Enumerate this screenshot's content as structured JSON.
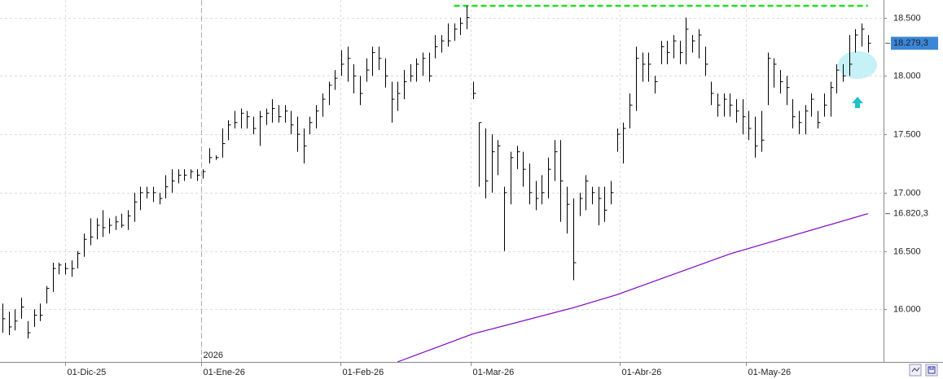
{
  "chart_data": {
    "type": "ohlc",
    "annotation": "2026",
    "color": "#000000",
    "grid": true,
    "xlim": [
      -0.4,
      140.5
    ],
    "ylim": [
      15550,
      18650
    ],
    "xticks": [
      {
        "value": 10,
        "label": "01-Dic-25"
      },
      {
        "value": 31.7,
        "label": "01-Ene-26"
      },
      {
        "value": 53.9,
        "label": "01-Feb-26"
      },
      {
        "value": 74.7,
        "label": "01-Mar-26"
      },
      {
        "value": 98.4,
        "label": "01-Abr-26"
      },
      {
        "value": 118.6,
        "label": "01-May-26"
      }
    ],
    "yticks": [
      {
        "value": 16000,
        "label": "16.000"
      },
      {
        "value": 16500,
        "label": "16.500"
      },
      {
        "value": 17000,
        "label": "17.000"
      },
      {
        "value": 17500,
        "label": "17.500"
      },
      {
        "value": 18000,
        "label": "18.000"
      },
      {
        "value": 18500,
        "label": "18.500"
      }
    ],
    "high": [
      16050,
      15980,
      16000,
      16100,
      15900,
      16000,
      16050,
      16200,
      16400,
      16400,
      16400,
      16420,
      16500,
      16650,
      16780,
      16780,
      16850,
      16780,
      16800,
      16820,
      16850,
      17000,
      17050,
      17050,
      17050,
      17000,
      17150,
      17200,
      17200,
      17200,
      17200,
      17200,
      17200,
      17380,
      17320,
      17550,
      17620,
      17700,
      17720,
      17700,
      17650,
      17700,
      17720,
      17800,
      17750,
      17750,
      17700,
      17650,
      17550,
      17650,
      17750,
      17850,
      17950,
      18050,
      18220,
      18250,
      18100,
      18000,
      18150,
      18250,
      18250,
      18150,
      17950,
      17950,
      18050,
      18100,
      18150,
      18200,
      18200,
      18350,
      18350,
      18450,
      18450,
      18500,
      18600,
      17950,
      17600,
      17550,
      17500,
      17450,
      17050,
      17350,
      17400,
      17350,
      17250,
      17100,
      17150,
      17300,
      17450,
      17450,
      17050,
      16950,
      17000,
      17150,
      17050,
      17050,
      17050,
      17100,
      17550,
      17600,
      17850,
      18250,
      18200,
      18200,
      18000,
      18300,
      18300,
      18350,
      18300,
      18500,
      18350,
      18400,
      18250,
      17950,
      17850,
      17850,
      17850,
      17800,
      17800,
      17700,
      17650,
      17700,
      18200,
      18150,
      18050,
      18000,
      17800,
      17700,
      17750,
      17850,
      17700,
      17850,
      17950,
      18100,
      18100,
      18350,
      18400,
      18450,
      18350
    ],
    "low": [
      15800,
      15780,
      15820,
      15920,
      15750,
      15850,
      15900,
      16050,
      16150,
      16300,
      16300,
      16280,
      16350,
      16450,
      16550,
      16600,
      16620,
      16650,
      16680,
      16700,
      16680,
      16750,
      16850,
      16950,
      16920,
      16900,
      16950,
      17000,
      17080,
      17100,
      17120,
      17100,
      17120,
      17250,
      17280,
      17300,
      17450,
      17550,
      17550,
      17550,
      17500,
      17400,
      17580,
      17600,
      17600,
      17600,
      17500,
      17350,
      17250,
      17500,
      17550,
      17650,
      17750,
      17880,
      18000,
      17950,
      17850,
      17750,
      17950,
      18000,
      18050,
      17900,
      17600,
      17700,
      17800,
      17950,
      17950,
      18000,
      17950,
      18150,
      18200,
      18250,
      18300,
      18350,
      18400,
      17800,
      17050,
      16950,
      17000,
      17150,
      16500,
      16900,
      17200,
      17050,
      16900,
      16850,
      16900,
      16950,
      17100,
      16750,
      16650,
      16250,
      16800,
      16850,
      16900,
      16720,
      16750,
      16900,
      17350,
      17250,
      17550,
      17700,
      17950,
      17950,
      17850,
      18100,
      18100,
      18150,
      18100,
      18100,
      18200,
      18150,
      18000,
      17750,
      17650,
      17650,
      17650,
      17600,
      17500,
      17450,
      17300,
      17350,
      17750,
      17900,
      17850,
      17750,
      17550,
      17500,
      17500,
      17650,
      17550,
      17650,
      17650,
      17850,
      17950,
      18000,
      18200,
      18250,
      18200
    ],
    "close": [
      15920,
      15850,
      15900,
      16020,
      15800,
      15950,
      15950,
      16180,
      16350,
      16380,
      16350,
      16350,
      16480,
      16600,
      16620,
      16720,
      16700,
      16720,
      16750,
      16720,
      16800,
      16920,
      17000,
      17000,
      17000,
      16950,
      17050,
      17100,
      17150,
      17150,
      17180,
      17150,
      17180,
      17300,
      17300,
      17420,
      17580,
      17600,
      17680,
      17650,
      17550,
      17650,
      17680,
      17720,
      17650,
      17700,
      17580,
      17500,
      17400,
      17600,
      17700,
      17800,
      17920,
      17980,
      18100,
      18150,
      18000,
      17850,
      18050,
      18200,
      18150,
      18000,
      17800,
      17850,
      17950,
      18000,
      18100,
      18150,
      18000,
      18250,
      18300,
      18300,
      18400,
      18450,
      18500,
      17850,
      17600,
      17100,
      17350,
      17400,
      17000,
      17300,
      17350,
      17200,
      17000,
      16950,
      17000,
      17200,
      17350,
      17100,
      16900,
      16400,
      16950,
      17100,
      17000,
      16950,
      16850,
      17000,
      17500,
      17550,
      17750,
      18150,
      18100,
      18100,
      17950,
      18250,
      18200,
      18300,
      18200,
      18400,
      18300,
      18350,
      18100,
      17850,
      17750,
      17800,
      17750,
      17700,
      17650,
      17550,
      17400,
      17450,
      18150,
      18100,
      17950,
      17900,
      17650,
      17600,
      17700,
      17800,
      17600,
      17750,
      17900,
      18050,
      18000,
      18100,
      18350,
      18400,
      18279.3
    ],
    "moving_average": {
      "color": "#8000c8",
      "x": [
        63,
        75,
        91,
        98,
        116,
        138
      ],
      "values": [
        15550,
        15790,
        16014,
        16126,
        16475,
        16820.3
      ]
    },
    "resistance": {
      "color": "#22dd22",
      "value": 18600,
      "x": [
        72,
        138
      ]
    },
    "last_labels": [
      {
        "value": 18279.3,
        "label": "18.279,3"
      },
      {
        "value": 16820.3,
        "label": "16.820,3"
      }
    ]
  }
}
